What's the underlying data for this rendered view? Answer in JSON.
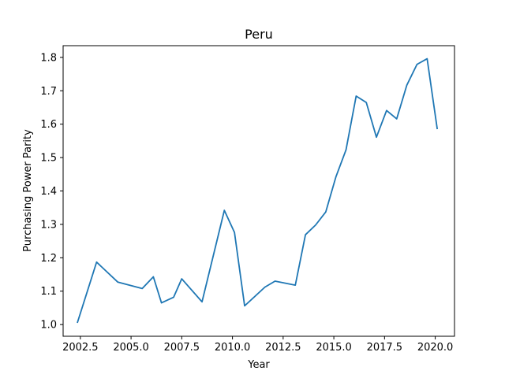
{
  "chart_data": {
    "type": "line",
    "title": "Peru",
    "xlabel": "Year",
    "ylabel": "Purchasing Power Parity",
    "xlim": [
      2001.65,
      2020.95
    ],
    "ylim": [
      0.965,
      1.835
    ],
    "xticks": [
      2002.5,
      2005.0,
      2007.5,
      2010.0,
      2012.5,
      2015.0,
      2017.5,
      2020.0
    ],
    "xtick_labels": [
      "2002.5",
      "2005.0",
      "2007.5",
      "2010.0",
      "2012.5",
      "2015.0",
      "2017.5",
      "2020.0"
    ],
    "yticks": [
      1.0,
      1.1,
      1.2,
      1.3,
      1.4,
      1.5,
      1.6,
      1.7,
      1.8
    ],
    "ytick_labels": [
      "1.0",
      "1.1",
      "1.2",
      "1.3",
      "1.4",
      "1.5",
      "1.6",
      "1.7",
      "1.8"
    ],
    "grid": false,
    "line_color": "#1f77b4",
    "series": [
      {
        "x": [
          2002.35,
          2003.3,
          2004.35,
          2005.55,
          2006.1,
          2006.5,
          2007.1,
          2007.5,
          2008.5,
          2009.6,
          2010.1,
          2010.6,
          2011.6,
          2012.1,
          2013.1,
          2013.6,
          2014.1,
          2014.6,
          2015.1,
          2015.6,
          2016.1,
          2016.6,
          2017.1,
          2017.6,
          2018.1,
          2018.6,
          2019.1,
          2019.6,
          2020.1
        ],
        "y": [
          1.005,
          1.187,
          1.127,
          1.108,
          1.143,
          1.065,
          1.082,
          1.137,
          1.068,
          1.342,
          1.276,
          1.056,
          1.112,
          1.13,
          1.118,
          1.269,
          1.298,
          1.337,
          1.442,
          1.523,
          1.684,
          1.665,
          1.561,
          1.641,
          1.616,
          1.717,
          1.779,
          1.796,
          1.585
        ]
      }
    ]
  }
}
